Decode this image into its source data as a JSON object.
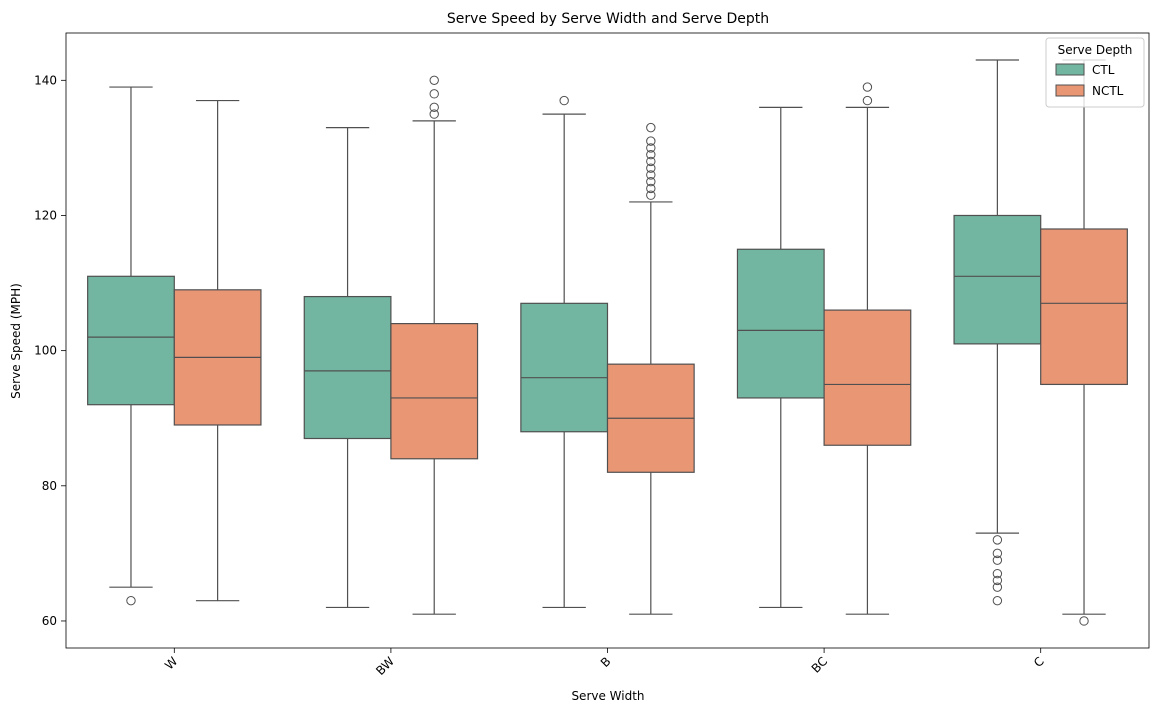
{
  "chart_data": {
    "type": "box",
    "title": "Serve Speed by Serve Width and Serve Depth",
    "xlabel": "Serve Width",
    "ylabel": "Serve Speed (MPH)",
    "categories": [
      "W",
      "BW",
      "B",
      "BC",
      "C"
    ],
    "ylim": [
      56,
      147
    ],
    "yticks": [
      60,
      80,
      100,
      120,
      140
    ],
    "grid": false,
    "legend": {
      "title": "Serve Depth",
      "placement": "top-right"
    },
    "series": [
      {
        "name": "CTL",
        "color": "#72b6a1",
        "boxes": [
          {
            "whisker_low": 65,
            "q1": 92,
            "median": 102,
            "q3": 111,
            "whisker_high": 139,
            "outliers": [
              63
            ]
          },
          {
            "whisker_low": 62,
            "q1": 87,
            "median": 97,
            "q3": 108,
            "whisker_high": 133,
            "outliers": []
          },
          {
            "whisker_low": 62,
            "q1": 88,
            "median": 96,
            "q3": 107,
            "whisker_high": 135,
            "outliers": [
              137
            ]
          },
          {
            "whisker_low": 62,
            "q1": 93,
            "median": 103,
            "q3": 115,
            "whisker_high": 136,
            "outliers": []
          },
          {
            "whisker_low": 73,
            "q1": 101,
            "median": 111,
            "q3": 120,
            "whisker_high": 143,
            "outliers": [
              72,
              70,
              69,
              67,
              66,
              65,
              63
            ]
          }
        ]
      },
      {
        "name": "NCTL",
        "color": "#e99675",
        "boxes": [
          {
            "whisker_low": 63,
            "q1": 89,
            "median": 99,
            "q3": 109,
            "whisker_high": 137,
            "outliers": []
          },
          {
            "whisker_low": 61,
            "q1": 84,
            "median": 93,
            "q3": 104,
            "whisker_high": 134,
            "outliers": [
              135,
              136,
              138,
              140
            ]
          },
          {
            "whisker_low": 61,
            "q1": 82,
            "median": 90,
            "q3": 98,
            "whisker_high": 122,
            "outliers": [
              123,
              124,
              125,
              126,
              127,
              128,
              129,
              130,
              131,
              133
            ]
          },
          {
            "whisker_low": 61,
            "q1": 86,
            "median": 95,
            "q3": 106,
            "whisker_high": 136,
            "outliers": [
              137,
              139
            ]
          },
          {
            "whisker_low": 61,
            "q1": 95,
            "median": 107,
            "q3": 118,
            "whisker_high": 143,
            "outliers": [
              60
            ]
          }
        ]
      }
    ]
  }
}
